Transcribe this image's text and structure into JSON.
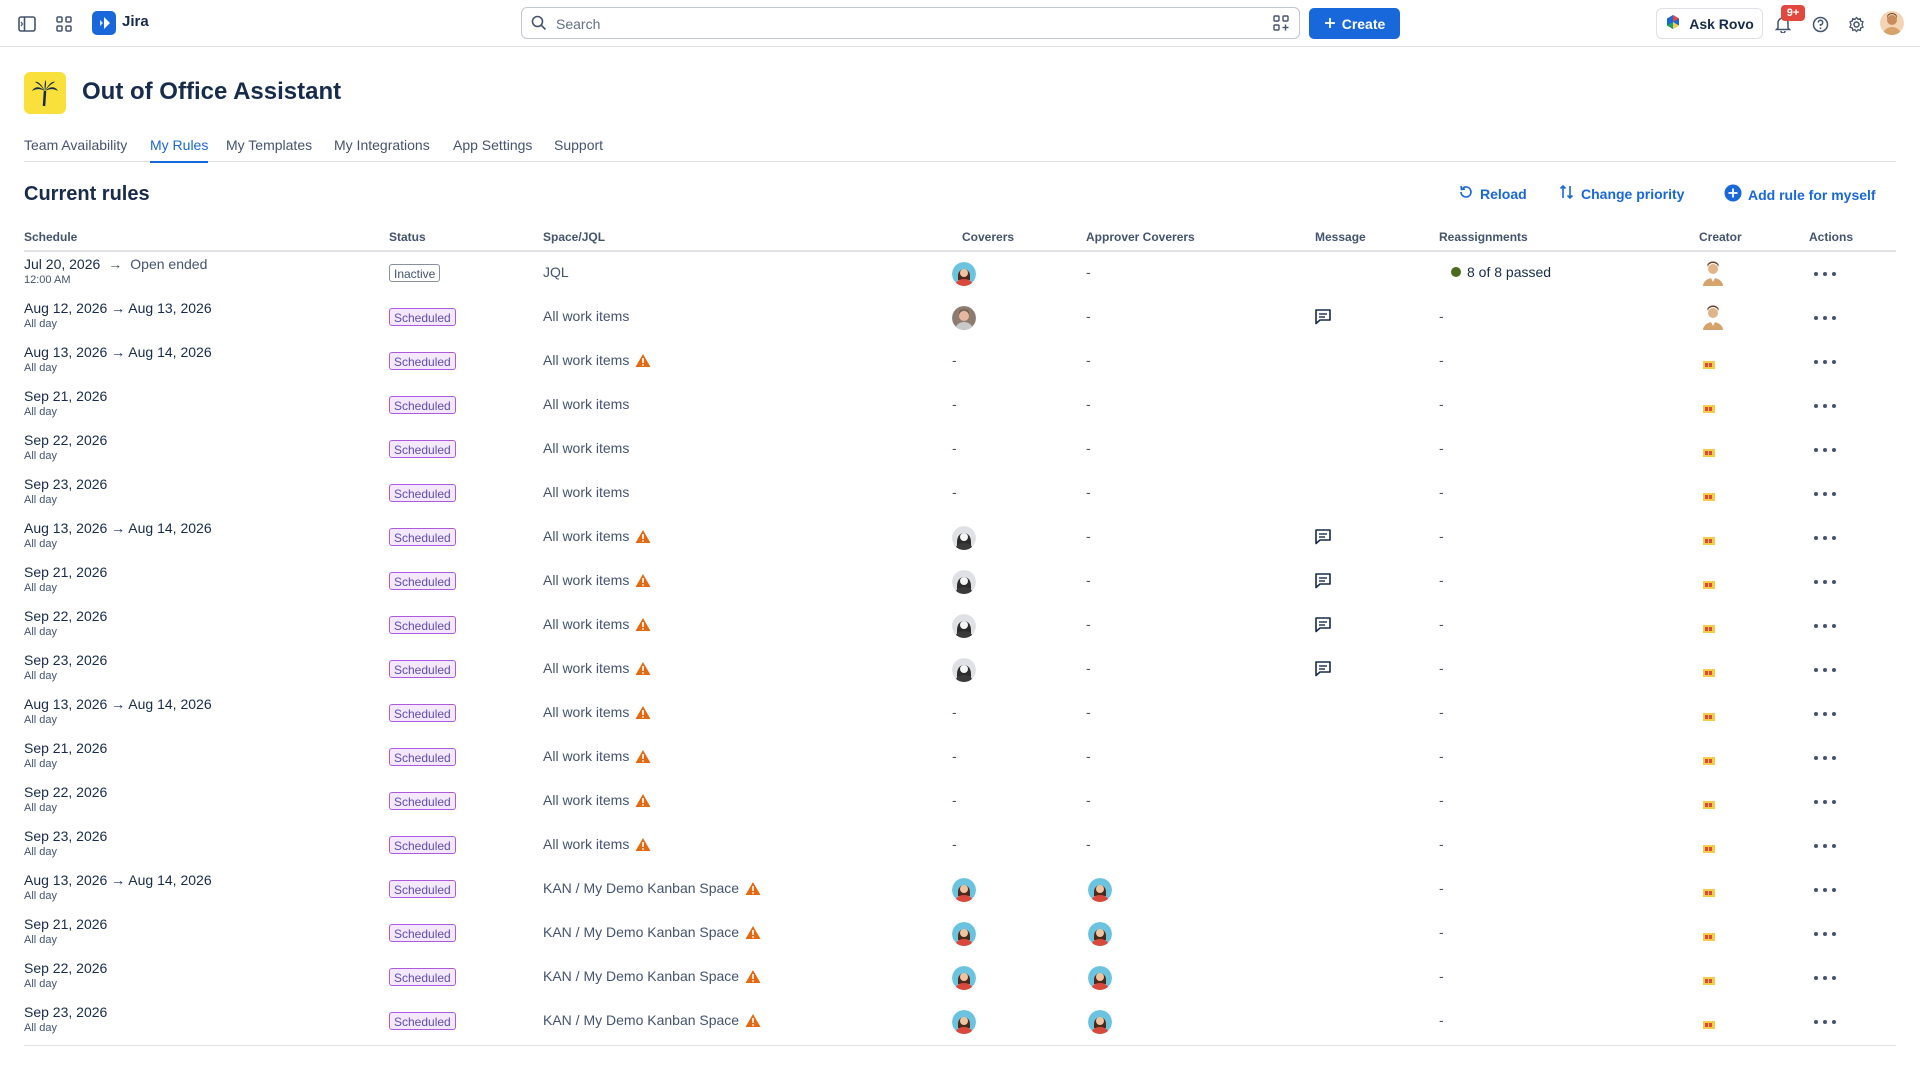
{
  "topbar": {
    "app_name": "Jira",
    "search_placeholder": "Search",
    "create_label": "Create",
    "rovo_label": "Ask Rovo",
    "notification_count": "9+"
  },
  "app": {
    "title": "Out of Office Assistant",
    "tabs": [
      {
        "label": "Team Availability",
        "active": false
      },
      {
        "label": "My Rules",
        "active": true
      },
      {
        "label": "My Templates",
        "active": false
      },
      {
        "label": "My Integrations",
        "active": false
      },
      {
        "label": "App Settings",
        "active": false
      },
      {
        "label": "Support",
        "active": false
      }
    ]
  },
  "rules": {
    "section_title": "Current rules",
    "reload_label": "Reload",
    "change_priority_label": "Change priority",
    "add_rule_label": "Add rule for myself",
    "columns": [
      "Schedule",
      "Status",
      "Space/JQL",
      "Coverers",
      "Approver Coverers",
      "Message",
      "Reassignments",
      "Creator",
      "Actions"
    ],
    "rows": [
      {
        "date": "Jul 20, 2026",
        "arrow_text": "Open ended",
        "sub": "12:00 AM",
        "status": "Inactive",
        "space": "JQL",
        "warn": false,
        "coverer": "woman-blue",
        "approver": "-",
        "message": false,
        "reassign": "8 of 8 passed",
        "creator": "photo"
      },
      {
        "date": "Aug 12, 2026 → Aug 13, 2026",
        "arrow_text": "",
        "sub": "All day",
        "status": "Scheduled",
        "space": "All work items",
        "warn": false,
        "coverer": "man-photo",
        "approver": "-",
        "message": true,
        "reassign": "-",
        "creator": "photo"
      },
      {
        "date": "Aug 13, 2026 → Aug 14, 2026",
        "arrow_text": "",
        "sub": "All day",
        "status": "Scheduled",
        "space": "All work items",
        "warn": true,
        "coverer": "-",
        "approver": "-",
        "message": false,
        "reassign": "-",
        "creator": "flag"
      },
      {
        "date": "Sep 21, 2026",
        "arrow_text": "",
        "sub": "All day",
        "status": "Scheduled",
        "space": "All work items",
        "warn": false,
        "coverer": "-",
        "approver": "-",
        "message": false,
        "reassign": "-",
        "creator": "flag"
      },
      {
        "date": "Sep 22, 2026",
        "arrow_text": "",
        "sub": "All day",
        "status": "Scheduled",
        "space": "All work items",
        "warn": false,
        "coverer": "-",
        "approver": "-",
        "message": false,
        "reassign": "-",
        "creator": "flag"
      },
      {
        "date": "Sep 23, 2026",
        "arrow_text": "",
        "sub": "All day",
        "status": "Scheduled",
        "space": "All work items",
        "warn": false,
        "coverer": "-",
        "approver": "-",
        "message": false,
        "reassign": "-",
        "creator": "flag"
      },
      {
        "date": "Aug 13, 2026 → Aug 14, 2026",
        "arrow_text": "",
        "sub": "All day",
        "status": "Scheduled",
        "space": "All work items",
        "warn": true,
        "coverer": "woman-dark",
        "approver": "-",
        "message": true,
        "reassign": "-",
        "creator": "flag"
      },
      {
        "date": "Sep 21, 2026",
        "arrow_text": "",
        "sub": "All day",
        "status": "Scheduled",
        "space": "All work items",
        "warn": true,
        "coverer": "woman-dark",
        "approver": "-",
        "message": true,
        "reassign": "-",
        "creator": "flag"
      },
      {
        "date": "Sep 22, 2026",
        "arrow_text": "",
        "sub": "All day",
        "status": "Scheduled",
        "space": "All work items",
        "warn": true,
        "coverer": "woman-dark",
        "approver": "-",
        "message": true,
        "reassign": "-",
        "creator": "flag"
      },
      {
        "date": "Sep 23, 2026",
        "arrow_text": "",
        "sub": "All day",
        "status": "Scheduled",
        "space": "All work items",
        "warn": true,
        "coverer": "woman-dark",
        "approver": "-",
        "message": true,
        "reassign": "-",
        "creator": "flag"
      },
      {
        "date": "Aug 13, 2026 → Aug 14, 2026",
        "arrow_text": "",
        "sub": "All day",
        "status": "Scheduled",
        "space": "All work items",
        "warn": true,
        "coverer": "-",
        "approver": "-",
        "message": false,
        "reassign": "-",
        "creator": "flag"
      },
      {
        "date": "Sep 21, 2026",
        "arrow_text": "",
        "sub": "All day",
        "status": "Scheduled",
        "space": "All work items",
        "warn": true,
        "coverer": "-",
        "approver": "-",
        "message": false,
        "reassign": "-",
        "creator": "flag"
      },
      {
        "date": "Sep 22, 2026",
        "arrow_text": "",
        "sub": "All day",
        "status": "Scheduled",
        "space": "All work items",
        "warn": true,
        "coverer": "-",
        "approver": "-",
        "message": false,
        "reassign": "-",
        "creator": "flag"
      },
      {
        "date": "Sep 23, 2026",
        "arrow_text": "",
        "sub": "All day",
        "status": "Scheduled",
        "space": "All work items",
        "warn": true,
        "coverer": "-",
        "approver": "-",
        "message": false,
        "reassign": "-",
        "creator": "flag"
      },
      {
        "date": "Aug 13, 2026 → Aug 14, 2026",
        "arrow_text": "",
        "sub": "All day",
        "status": "Scheduled",
        "space": "KAN / My Demo Kanban Space",
        "warn": true,
        "coverer": "woman-blue",
        "approver": "woman-blue",
        "message": false,
        "reassign": "-",
        "creator": "flag"
      },
      {
        "date": "Sep 21, 2026",
        "arrow_text": "",
        "sub": "All day",
        "status": "Scheduled",
        "space": "KAN / My Demo Kanban Space",
        "warn": true,
        "coverer": "woman-blue",
        "approver": "woman-blue",
        "message": false,
        "reassign": "-",
        "creator": "flag"
      },
      {
        "date": "Sep 22, 2026",
        "arrow_text": "",
        "sub": "All day",
        "status": "Scheduled",
        "space": "KAN / My Demo Kanban Space",
        "warn": true,
        "coverer": "woman-blue",
        "approver": "woman-blue",
        "message": false,
        "reassign": "-",
        "creator": "flag"
      },
      {
        "date": "Sep 23, 2026",
        "arrow_text": "",
        "sub": "All day",
        "status": "Scheduled",
        "space": "KAN / My Demo Kanban Space",
        "warn": true,
        "coverer": "woman-blue",
        "approver": "woman-blue",
        "message": false,
        "reassign": "-",
        "creator": "flag"
      }
    ]
  },
  "colors": {
    "brand_blue": "#1868db",
    "scheduled_bg": "#f3e8fd",
    "scheduled_border": "#af59e1",
    "warning": "#e56910",
    "passed_green": "#4c6b1f",
    "notification_red": "#e2483d",
    "app_logo_yellow": "#f9e03b"
  },
  "icons": [
    "sidebar-toggle-icon",
    "app-switcher-icon",
    "jira-logo-icon",
    "search-icon",
    "filter-icon",
    "plus-icon",
    "rovo-icon",
    "bell-icon",
    "help-icon",
    "gear-icon",
    "palm-tree-icon",
    "reload-icon",
    "sort-icon",
    "add-circle-icon",
    "warning-icon",
    "comment-icon",
    "more-icon"
  ]
}
